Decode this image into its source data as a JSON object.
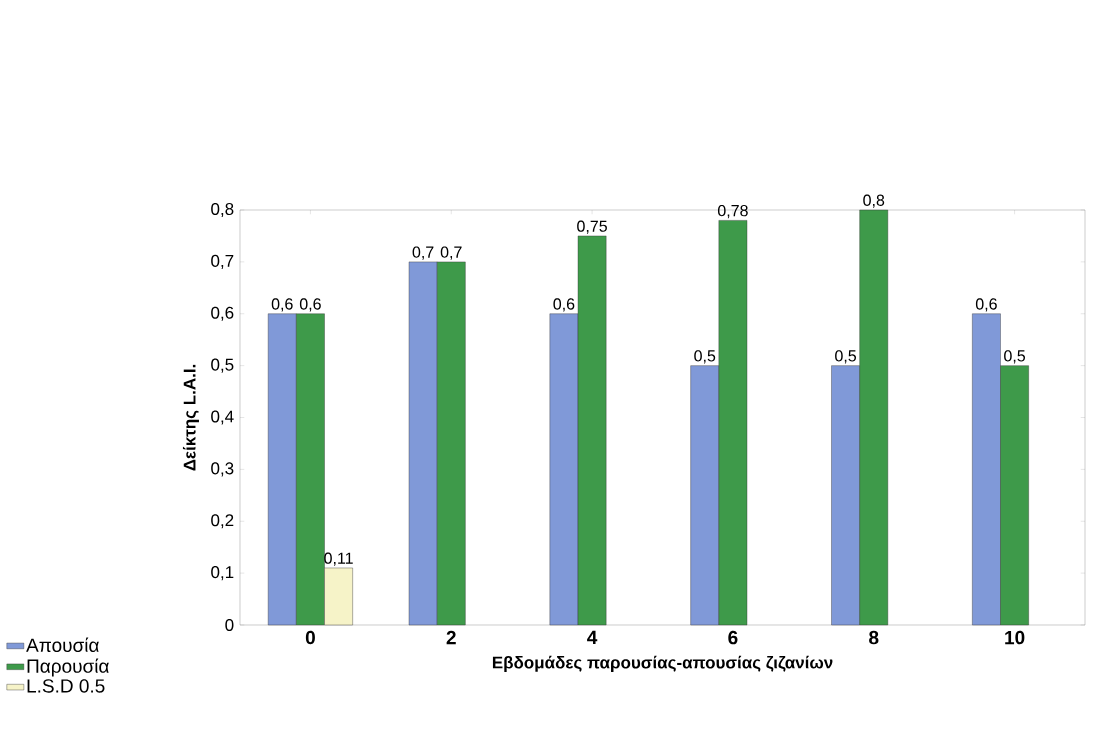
{
  "chart_data": {
    "type": "bar",
    "xlabel": "Εβδομάδες παρουσίας-απουσίας ζιζανίων",
    "ylabel": "Δείκτης L.A.I.",
    "categories": [
      "0",
      "2",
      "4",
      "6",
      "8",
      "10"
    ],
    "series": [
      {
        "name": "Απουσία",
        "color": "#8099d8",
        "values": [
          0.6,
          0.7,
          0.6,
          0.5,
          0.5,
          0.6
        ],
        "value_labels": [
          "0,6",
          "0,7",
          "0,6",
          "0,5",
          "0,5",
          "0,6"
        ]
      },
      {
        "name": "Παρουσία",
        "color": "#3e9a4a",
        "values": [
          0.6,
          0.7,
          0.75,
          0.78,
          0.8,
          0.5
        ],
        "value_labels": [
          "0,6",
          "0,7",
          "0,75",
          "0,78",
          "0,8",
          "0,5"
        ]
      },
      {
        "name": "L.S.D 0.5",
        "color": "#f6f3c8",
        "values": [
          0.11,
          null,
          null,
          null,
          null,
          null
        ],
        "value_labels": [
          "0,11",
          null,
          null,
          null,
          null,
          null
        ]
      }
    ],
    "ylim": [
      0,
      0.8
    ],
    "yticks": [
      0,
      {
        "value": 0.1,
        "label": "0,1"
      },
      {
        "value": 0.2,
        "label": "0,2"
      },
      {
        "value": 0.3,
        "label": "0,3"
      },
      {
        "value": 0.4,
        "label": "0,4"
      },
      {
        "value": 0.5,
        "label": "0,5"
      },
      {
        "value": 0.6,
        "label": "0,6"
      },
      {
        "value": 0.7,
        "label": "0,7"
      },
      {
        "value": 0.8,
        "label": "0,8"
      }
    ],
    "grid": false,
    "legend": "bottom left"
  }
}
